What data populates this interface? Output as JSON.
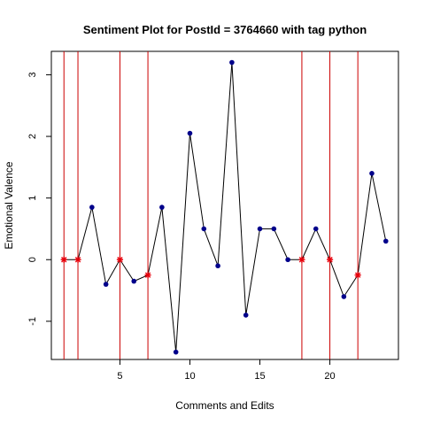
{
  "chart_data": {
    "type": "line",
    "title": "Sentiment Plot for PostId =  3764660  with tag  python",
    "xlabel": "Comments and Edits",
    "ylabel": "Emotional Valence",
    "xlim": [
      0.1,
      24.9
    ],
    "ylim": [
      -1.62,
      3.38
    ],
    "x_ticks": [
      5,
      10,
      15,
      20
    ],
    "y_ticks": [
      -1,
      0,
      1,
      2,
      3
    ],
    "x_tick_labels": [
      "5",
      "10",
      "15",
      "20"
    ],
    "y_tick_labels": [
      "-1",
      "0",
      "1",
      "2",
      "3"
    ],
    "grid": false,
    "legend": "none",
    "series": [
      {
        "x": [
          1,
          2,
          3,
          4,
          5,
          6,
          7,
          8,
          9,
          10,
          11,
          12,
          13,
          14,
          15,
          16,
          17,
          18,
          19,
          20,
          21,
          22,
          23,
          24
        ],
        "values": [
          0,
          0,
          0.85,
          -0.4,
          0,
          -0.35,
          -0.25,
          0.85,
          -1.5,
          2.05,
          0.5,
          -0.1,
          3.2,
          -0.9,
          0.5,
          0.5,
          0,
          0,
          0.5,
          0,
          -0.6,
          -0.25,
          1.4,
          0.3
        ],
        "type": [
          "edit",
          "edit",
          "comment",
          "comment",
          "edit",
          "comment",
          "edit",
          "comment",
          "comment",
          "comment",
          "comment",
          "comment",
          "comment",
          "comment",
          "comment",
          "comment",
          "comment",
          "edit",
          "comment",
          "edit",
          "comment",
          "edit",
          "comment",
          "comment"
        ]
      }
    ],
    "vertical_lines": [
      1,
      2,
      5,
      7,
      18,
      20,
      22
    ],
    "colors": {
      "line": "#000000",
      "comment_point": "#00008b",
      "edit_point": "#e8000b",
      "vertical_line": "#cc0000",
      "axis": "#000000"
    }
  }
}
